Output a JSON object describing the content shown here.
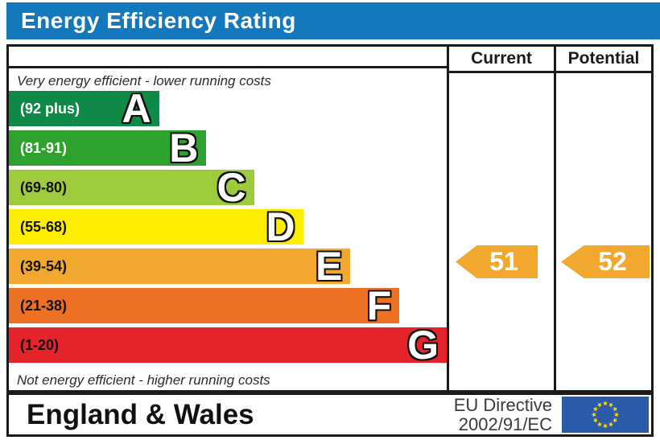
{
  "title": "Energy Efficiency Rating",
  "title_bar": {
    "background": "#1378bd",
    "text_color": "#ffffff"
  },
  "columns": {
    "current": "Current",
    "potential": "Potential"
  },
  "captions": {
    "top": "Very energy efficient - lower running costs",
    "bottom": "Not energy efficient - higher running costs"
  },
  "bands": [
    {
      "letter": "A",
      "range": "(92 plus)",
      "color": "#0e8a46",
      "width_pct": 34.3,
      "label_color": "#ffffff"
    },
    {
      "letter": "B",
      "range": "(81-91)",
      "color": "#2fa12f",
      "width_pct": 45.1,
      "label_color": "#ffffff"
    },
    {
      "letter": "C",
      "range": "(69-80)",
      "color": "#9ecb3c",
      "width_pct": 56.0,
      "label_color": "#111111"
    },
    {
      "letter": "D",
      "range": "(55-68)",
      "color": "#ffed00",
      "width_pct": 67.2,
      "label_color": "#111111"
    },
    {
      "letter": "E",
      "range": "(39-54)",
      "color": "#f2a72e",
      "width_pct": 78.0,
      "label_color": "#111111"
    },
    {
      "letter": "F",
      "range": "(21-38)",
      "color": "#ec7124",
      "width_pct": 89.2,
      "label_color": "#111111"
    },
    {
      "letter": "G",
      "range": "(1-20)",
      "color": "#e5232a",
      "width_pct": 100,
      "label_color": "#111111"
    }
  ],
  "ratings": {
    "current": {
      "value": "51",
      "arrow_color": "#f2a72e"
    },
    "potential": {
      "value": "52",
      "arrow_color": "#f2a72e"
    }
  },
  "footer": {
    "region": "England & Wales",
    "directive_line1": "EU Directive",
    "directive_line2": "2002/91/EC",
    "eu_flag": {
      "field_color": "#2a5aa8",
      "star_color": "#ffdd00"
    }
  },
  "chart_data": {
    "type": "bar",
    "title": "Energy Efficiency Rating",
    "categories": [
      "A",
      "B",
      "C",
      "D",
      "E",
      "F",
      "G"
    ],
    "band_ranges": [
      "92 plus",
      "81-91",
      "69-80",
      "55-68",
      "39-54",
      "21-38",
      "1-20"
    ],
    "values": [
      34.3,
      45.1,
      56.0,
      67.2,
      78.0,
      89.2,
      100
    ],
    "values_unit": "percent of chart width (fixed EPC scale bars)",
    "band_colors": [
      "#0e8a46",
      "#2fa12f",
      "#9ecb3c",
      "#ffed00",
      "#f2a72e",
      "#ec7124",
      "#e5232a"
    ],
    "series": [
      {
        "name": "Current",
        "values": [
          51
        ],
        "band": "E"
      },
      {
        "name": "Potential",
        "values": [
          52
        ],
        "band": "E"
      }
    ],
    "top_caption": "Very energy efficient - lower running costs",
    "bottom_caption": "Not energy efficient - higher running costs",
    "legend": [
      "Current",
      "Potential"
    ],
    "grid": false
  }
}
